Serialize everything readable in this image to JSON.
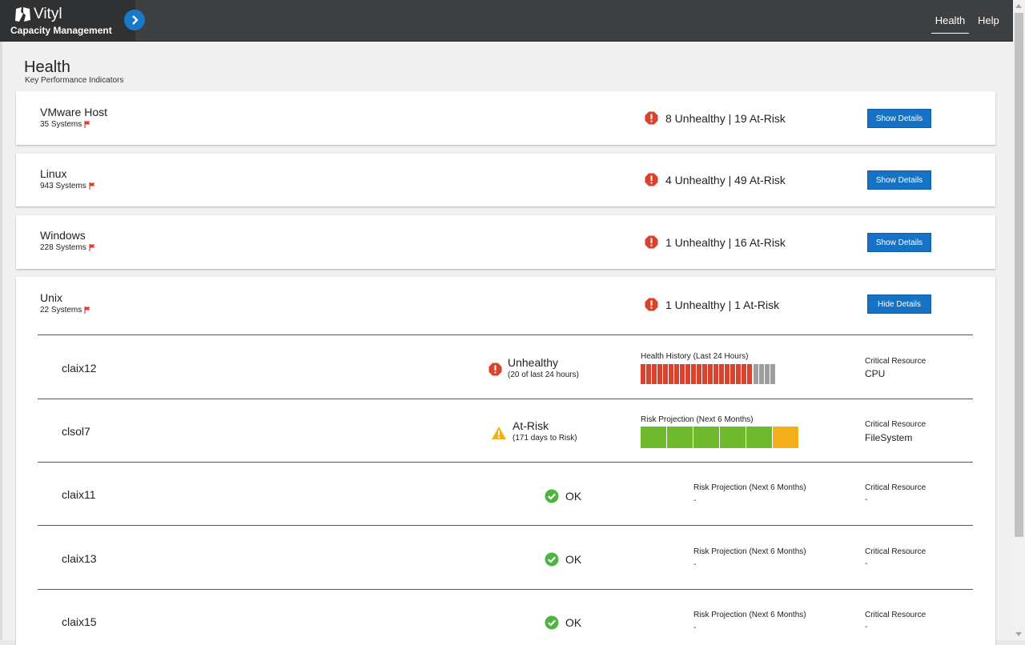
{
  "app": {
    "name": "Vityl",
    "subtitle": "Capacity Management"
  },
  "nav": {
    "items": [
      {
        "label": "Health",
        "active": true
      },
      {
        "label": "Help",
        "active": false
      }
    ]
  },
  "page": {
    "title": "Health",
    "subtitle": "Key Performance Indicators"
  },
  "colors": {
    "accent": "#1672c4",
    "unhealthy": "#d9422c",
    "at_risk": "#f4b01b",
    "ok": "#4fb342",
    "history_gray": "#9e9e9e",
    "projection_green": "#6fba2c"
  },
  "groups": [
    {
      "name": "VMware Host",
      "count": "35 Systems",
      "summary": "8 Unhealthy | 19 At-Risk",
      "button": "Show Details"
    },
    {
      "name": "Linux",
      "count": "943 Systems",
      "summary": "4 Unhealthy | 49 At-Risk",
      "button": "Show Details"
    },
    {
      "name": "Windows",
      "count": "228 Systems",
      "summary": "1 Unhealthy | 16 At-Risk",
      "button": "Show Details"
    },
    {
      "name": "Unix",
      "count": "22 Systems",
      "summary": "1 Unhealthy | 1 At-Risk",
      "button": "Hide Details"
    }
  ],
  "unix_systems": [
    {
      "name": "claix12",
      "status": "Unhealthy",
      "status_detail": "(20 of last 24 hours)",
      "metric_label": "Health History (Last 24 Hours)",
      "history": {
        "unhealthy_hours": 20,
        "total_hours": 24
      },
      "critical_label": "Critical Resource",
      "critical_value": "CPU"
    },
    {
      "name": "clsol7",
      "status": "At-Risk",
      "status_detail": "(171 days to Risk)",
      "metric_label": "Risk Projection (Next 6 Months)",
      "projection": [
        "ok",
        "ok",
        "ok",
        "ok",
        "ok",
        "at-risk"
      ],
      "critical_label": "Critical Resource",
      "critical_value": "FileSystem"
    },
    {
      "name": "claix11",
      "status": "OK",
      "metric_label": "Risk Projection (Next 6 Months)",
      "metric_value": "-",
      "critical_label": "Critical Resource",
      "critical_value": "-"
    },
    {
      "name": "claix13",
      "status": "OK",
      "metric_label": "Risk Projection (Next 6 Months)",
      "metric_value": "-",
      "critical_label": "Critical Resource",
      "critical_value": "-"
    },
    {
      "name": "claix15",
      "status": "OK",
      "metric_label": "Risk Projection (Next 6 Months)",
      "metric_value": "-",
      "critical_label": "Critical Resource",
      "critical_value": "-"
    }
  ]
}
